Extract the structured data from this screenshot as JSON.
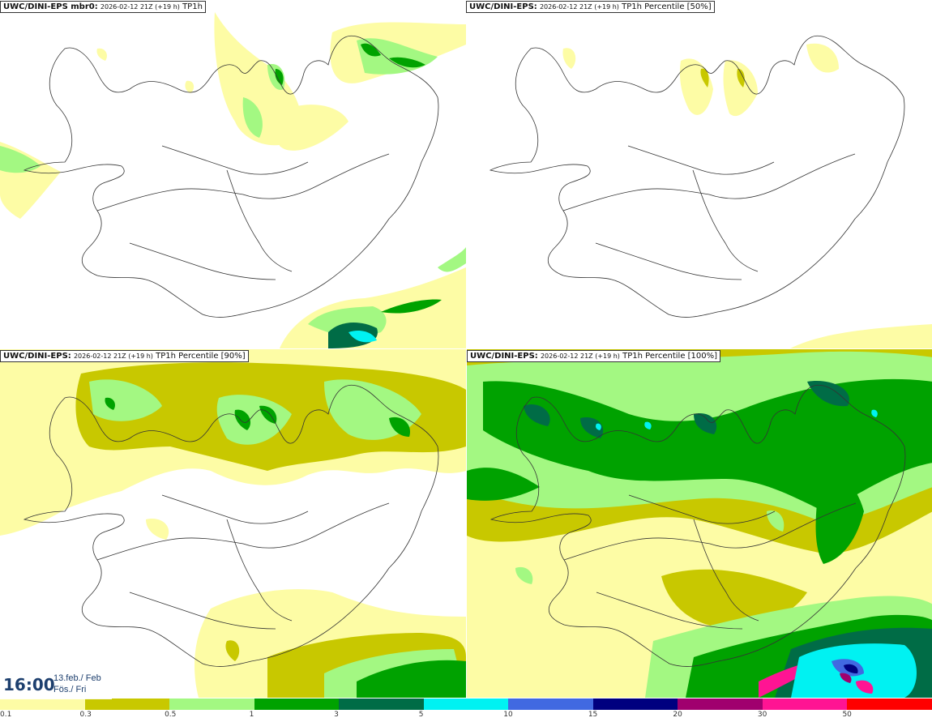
{
  "panels": [
    {
      "model": "UWC/DINI-EPS mbr0:",
      "run": "2026-02-12 21Z (+19 h)",
      "field": "TP1h"
    },
    {
      "model": "UWC/DINI-EPS:",
      "run": "2026-02-12 21Z (+19 h)",
      "field": "TP1h Percentile [50%]"
    },
    {
      "model": "UWC/DINI-EPS:",
      "run": "2026-02-12 21Z (+19 h)",
      "field": "TP1h Percentile [90%]"
    },
    {
      "model": "UWC/DINI-EPS:",
      "run": "2026-02-12 21Z (+19 h)",
      "field": "TP1h Percentile [100%]"
    }
  ],
  "valid_time": {
    "time": "16:00",
    "date_line1": "13.feb./ Feb",
    "date_line2": "Fös./ Fri"
  },
  "legend": {
    "colors": [
      "#fdfca5",
      "#c8c800",
      "#a3f882",
      "#00a200",
      "#006c46",
      "#00f2f2",
      "#4169e1",
      "#00007f",
      "#a0006e",
      "#ff1493",
      "#ff0000"
    ],
    "ticks": [
      "0.1",
      "0.3",
      "0.5",
      "1",
      "3",
      "5",
      "10",
      "15",
      "20",
      "30",
      "50"
    ]
  }
}
